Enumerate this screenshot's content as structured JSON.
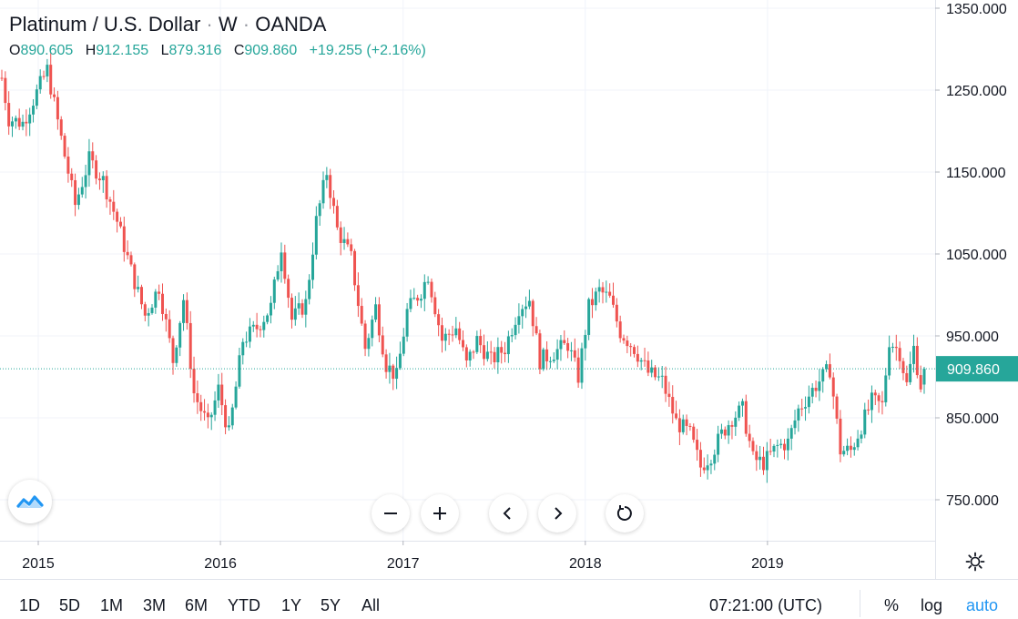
{
  "legend": {
    "symbol": "Platinum / U.S. Dollar",
    "interval": "W",
    "source": "OANDA",
    "separator": "·"
  },
  "ohlc": {
    "open_label": "O",
    "open": "890.605",
    "high_label": "H",
    "high": "912.155",
    "low_label": "L",
    "low": "879.316",
    "close_label": "C",
    "close": "909.860",
    "change": "+19.255 (+2.16%)"
  },
  "price_axis": {
    "ticks": [
      "1350.000",
      "1250.000",
      "1150.000",
      "1050.000",
      "950.000",
      "850.000",
      "750.000"
    ],
    "last_price": "909.860"
  },
  "time_axis": {
    "ticks": [
      "2015",
      "2016",
      "2017",
      "2018",
      "2019"
    ]
  },
  "controls": {
    "zoom_out": "−",
    "zoom_in": "+",
    "scroll_left": "‹",
    "scroll_right": "›",
    "reset_icon": "reset-icon"
  },
  "bottom_bar": {
    "ranges": [
      "1D",
      "5D",
      "1M",
      "3M",
      "6M",
      "YTD",
      "1Y",
      "5Y",
      "All"
    ],
    "time": "07:21:00 (UTC)",
    "percent": "%",
    "log": "log",
    "auto": "auto"
  },
  "colors": {
    "up": "#26a69a",
    "down": "#ef5350",
    "grid": "#f0f3fa",
    "axis_border": "#e0e3eb",
    "price_line": "#26a69a",
    "active_option": "#2196f3"
  },
  "chart_data": {
    "type": "candlestick",
    "title": "Platinum / U.S. Dollar · W · OANDA",
    "y_axis": {
      "scale": "linear",
      "range": [
        700,
        1360
      ],
      "ticks": [
        750,
        850,
        950,
        1050,
        1150,
        1250,
        1350
      ],
      "side": "right"
    },
    "x_axis": {
      "type": "time",
      "range": [
        "2014-10-20",
        "2019-11-11"
      ],
      "ticks": [
        "2015",
        "2016",
        "2017",
        "2018",
        "2019"
      ]
    },
    "grid": true,
    "last_price": 909.86,
    "series": [
      {
        "interval": "weekly",
        "anchors": [
          [
            "2014-10-20",
            1265
          ],
          [
            "2014-11-03",
            1215
          ],
          [
            "2014-12-01",
            1210
          ],
          [
            "2015-01-19",
            1275
          ],
          [
            "2015-02-23",
            1170
          ],
          [
            "2015-03-16",
            1110
          ],
          [
            "2015-04-13",
            1165
          ],
          [
            "2015-05-11",
            1140
          ],
          [
            "2015-06-08",
            1090
          ],
          [
            "2015-07-06",
            1030
          ],
          [
            "2015-08-03",
            975
          ],
          [
            "2015-08-31",
            1010
          ],
          [
            "2015-09-28",
            920
          ],
          [
            "2015-10-19",
            995
          ],
          [
            "2015-11-09",
            880
          ],
          [
            "2015-12-07",
            840
          ],
          [
            "2015-12-28",
            885
          ],
          [
            "2016-01-18",
            830
          ],
          [
            "2016-02-15",
            945
          ],
          [
            "2016-03-14",
            960
          ],
          [
            "2016-04-11",
            985
          ],
          [
            "2016-05-02",
            1060
          ],
          [
            "2016-05-23",
            970
          ],
          [
            "2016-06-20",
            990
          ],
          [
            "2016-07-11",
            1090
          ],
          [
            "2016-08-01",
            1150
          ],
          [
            "2016-08-22",
            1080
          ],
          [
            "2016-09-19",
            1045
          ],
          [
            "2016-10-17",
            935
          ],
          [
            "2016-11-07",
            985
          ],
          [
            "2016-11-28",
            915
          ],
          [
            "2016-12-19",
            900
          ],
          [
            "2017-01-09",
            980
          ],
          [
            "2017-02-06",
            1005
          ],
          [
            "2017-02-20",
            1025
          ],
          [
            "2017-03-20",
            945
          ],
          [
            "2017-04-17",
            960
          ],
          [
            "2017-05-08",
            915
          ],
          [
            "2017-05-29",
            945
          ],
          [
            "2017-06-26",
            920
          ],
          [
            "2017-07-24",
            935
          ],
          [
            "2017-08-21",
            985
          ],
          [
            "2017-09-11",
            995
          ],
          [
            "2017-10-02",
            920
          ],
          [
            "2017-10-30",
            930
          ],
          [
            "2017-11-27",
            940
          ],
          [
            "2017-12-18",
            900
          ],
          [
            "2018-01-08",
            985
          ],
          [
            "2018-01-29",
            1005
          ],
          [
            "2018-02-19",
            995
          ],
          [
            "2018-03-12",
            955
          ],
          [
            "2018-04-09",
            935
          ],
          [
            "2018-05-07",
            905
          ],
          [
            "2018-06-04",
            895
          ],
          [
            "2018-07-02",
            845
          ],
          [
            "2018-07-30",
            830
          ],
          [
            "2018-08-20",
            790
          ],
          [
            "2018-09-10",
            805
          ],
          [
            "2018-10-01",
            830
          ],
          [
            "2018-10-22",
            850
          ],
          [
            "2018-11-12",
            860
          ],
          [
            "2018-12-03",
            800
          ],
          [
            "2018-12-24",
            795
          ],
          [
            "2019-01-21",
            815
          ],
          [
            "2019-02-11",
            820
          ],
          [
            "2019-03-04",
            860
          ],
          [
            "2019-04-08",
            890
          ],
          [
            "2019-05-06",
            910
          ],
          [
            "2019-05-27",
            810
          ],
          [
            "2019-06-17",
            810
          ],
          [
            "2019-07-08",
            840
          ],
          [
            "2019-07-29",
            870
          ],
          [
            "2019-08-19",
            865
          ],
          [
            "2019-09-02",
            945
          ],
          [
            "2019-09-23",
            930
          ],
          [
            "2019-10-07",
            890
          ],
          [
            "2019-10-21",
            935
          ],
          [
            "2019-11-04",
            890
          ],
          [
            "2019-11-11",
            910
          ]
        ],
        "last_candle": {
          "open": 890.605,
          "high": 912.155,
          "low": 879.316,
          "close": 909.86
        }
      }
    ]
  }
}
